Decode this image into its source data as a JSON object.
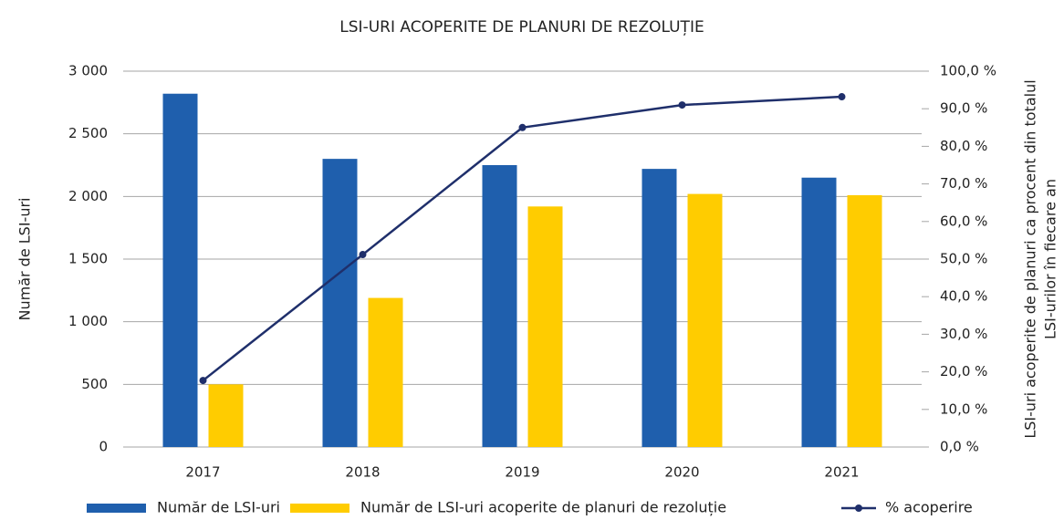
{
  "chart_data": {
    "type": "bar",
    "title": "LSI-URI ACOPERITE DE PLANURI DE REZOLUȚIE",
    "categories": [
      "2017",
      "2018",
      "2019",
      "2020",
      "2021"
    ],
    "series": [
      {
        "name": "Număr de LSI-uri",
        "color": "#1f5fad",
        "type": "bar",
        "values": [
          2820,
          2300,
          2250,
          2220,
          2150
        ]
      },
      {
        "name": "Număr de LSI-uri acoperite de planuri de rezoluție",
        "color": "#ffcc00",
        "type": "bar",
        "values": [
          500,
          1190,
          1920,
          2020,
          2010
        ]
      },
      {
        "name": "% acoperire",
        "color": "#1f2f6b",
        "type": "line",
        "axis": "y2",
        "values": [
          17.7,
          51.2,
          85.0,
          91.0,
          93.2
        ]
      }
    ],
    "ylabel": "Număr de LSI-uri",
    "y2label": [
      "LSI-uri acoperite de planuri ca procent din totalul",
      "LSI-urilor în fiecare an"
    ],
    "ylim": [
      0,
      3000
    ],
    "yticks": [
      0,
      500,
      {
        "value": 1000,
        "label": "1 000"
      },
      {
        "value": 1500,
        "label": "1 500"
      },
      {
        "value": 2000,
        "label": "2 000"
      },
      {
        "value": 2500,
        "label": "2 500"
      },
      {
        "value": 3000,
        "label": "3 000"
      }
    ],
    "y2lim": [
      0,
      100
    ],
    "y2ticks": [
      {
        "value": 0,
        "label": "0,0 %"
      },
      {
        "value": 10,
        "label": "10,0 %"
      },
      {
        "value": 20,
        "label": "20,0 %"
      },
      {
        "value": 30,
        "label": "30,0 %"
      },
      {
        "value": 40,
        "label": "40,0 %"
      },
      {
        "value": 50,
        "label": "50,0 %"
      },
      {
        "value": 60,
        "label": "60,0 %"
      },
      {
        "value": 70,
        "label": "70,0 %"
      },
      {
        "value": 80,
        "label": "80,0 %"
      },
      {
        "value": 90,
        "label": "90,0 %"
      },
      {
        "value": 100,
        "label": "100,0 %"
      }
    ],
    "grid": true,
    "legend": "bottom"
  }
}
